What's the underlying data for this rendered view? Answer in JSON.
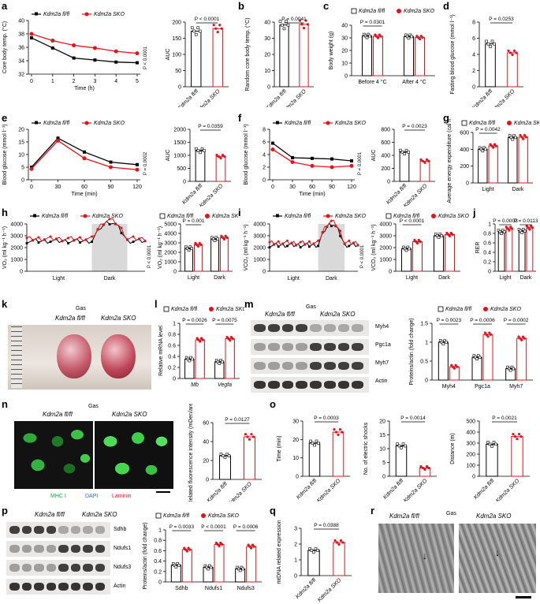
{
  "panel_labels": [
    "a",
    "b",
    "c",
    "d",
    "e",
    "f",
    "g",
    "h",
    "i",
    "j",
    "k",
    "l",
    "m",
    "n",
    "o",
    "p",
    "q",
    "r"
  ],
  "colors": {
    "ctrl": "#000000",
    "ko": "#e4131b",
    "shade": "#d9d9d9"
  },
  "legend": {
    "ctrl": "Kdm2a",
    "ctrl_sup": "fl/fl",
    "ko": "Kdm2a",
    "ko_sup": "SKO"
  },
  "chart_data": [
    {
      "id": "a1",
      "type": "line",
      "x": [
        0,
        1,
        2,
        3,
        4,
        5
      ],
      "xlabel": "Time (h)",
      "ylabel": "Core body temp. (°C)",
      "ylim": [
        32,
        40
      ],
      "yticks": [
        32,
        34,
        36,
        38,
        40
      ],
      "series": [
        {
          "name": "Kdm2a fl/fl",
          "values": [
            37.4,
            35.9,
            34.4,
            34.1,
            33.8,
            33.7
          ]
        },
        {
          "name": "Kdm2a SKO",
          "values": [
            38.0,
            37.0,
            36.3,
            35.9,
            35.4,
            35.1
          ]
        }
      ],
      "annotations": [
        "P < 0.0001"
      ]
    },
    {
      "id": "a2",
      "type": "bar",
      "categories": [
        "Kdm2a fl/fl",
        "Kdm2a SKO"
      ],
      "values": [
        172,
        180
      ],
      "ylabel": "AUC",
      "ylim": [
        0,
        200
      ],
      "yticks": [
        0,
        50,
        100,
        150,
        200
      ],
      "annotations": [
        "P < 0.0001"
      ]
    },
    {
      "id": "b",
      "type": "bar",
      "categories": [
        "Kdm2a fl/fl",
        "Kdm2a SKO"
      ],
      "values": [
        38.2,
        38.6
      ],
      "ylabel": "Random core body temp. (°C)",
      "ylim": [
        0,
        40
      ],
      "yticks": [
        0,
        10,
        20,
        30,
        40
      ],
      "annotations": [
        "P = 0.0041"
      ]
    },
    {
      "id": "c",
      "type": "bar",
      "categories": [
        "Before 4 °C",
        "After 4 °C"
      ],
      "series": [
        {
          "name": "Kdm2a fl/fl",
          "values": [
            31.5,
            31.0
          ]
        },
        {
          "name": "Kdm2a SKO",
          "values": [
            31.2,
            30.2
          ]
        }
      ],
      "ylabel": "Body weight (g)",
      "ylim": [
        0,
        40
      ],
      "yticks": [
        0,
        10,
        20,
        30,
        40
      ],
      "annotations": [
        "P = 0.0301"
      ]
    },
    {
      "id": "d",
      "type": "bar",
      "categories": [
        "Kdm2a fl/fl",
        "Kdm2a SKO"
      ],
      "values": [
        5.3,
        4.2
      ],
      "ylabel": "Fasting blood glucose (mmol l⁻¹)",
      "ylim": [
        0,
        8
      ],
      "yticks": [
        0,
        2,
        4,
        6,
        8
      ],
      "annotations": [
        "P = 0.0253"
      ]
    },
    {
      "id": "e1",
      "type": "line",
      "x": [
        0,
        30,
        60,
        90,
        120
      ],
      "xlabel": "Time (min)",
      "ylabel": "Blood glucose (mmol l⁻¹)",
      "ylim": [
        0,
        20
      ],
      "yticks": [
        0,
        5,
        10,
        15,
        20
      ],
      "series": [
        {
          "name": "Kdm2a fl/fl",
          "values": [
            5,
            16.5,
            11,
            7,
            6
          ]
        },
        {
          "name": "Kdm2a SKO",
          "values": [
            4.3,
            15.5,
            8.5,
            5,
            4
          ]
        }
      ],
      "annotations": [
        "P = 0.0002"
      ]
    },
    {
      "id": "e2",
      "type": "bar",
      "categories": [
        "Kdm2a fl/fl",
        "Kdm2a SKO"
      ],
      "values": [
        1180,
        950
      ],
      "ylabel": "AUC",
      "ylim": [
        0,
        2000
      ],
      "yticks": [
        0,
        500,
        1000,
        1500,
        2000
      ],
      "annotations": [
        "P = 0.0359"
      ]
    },
    {
      "id": "f1",
      "type": "line",
      "x": [
        0,
        30,
        60,
        90,
        120
      ],
      "xlabel": "Time (min)",
      "ylabel": "Blood glucose (mmol l⁻¹)",
      "ylim": [
        0,
        8
      ],
      "yticks": [
        0,
        2,
        4,
        6,
        8
      ],
      "series": [
        {
          "name": "Kdm2a fl/fl",
          "values": [
            5.8,
            3.5,
            3.4,
            3.3,
            3.0
          ]
        },
        {
          "name": "Kdm2a SKO",
          "values": [
            4.8,
            2.8,
            2.2,
            2.0,
            2.2
          ]
        }
      ],
      "annotations": [
        "P = 0.0001"
      ]
    },
    {
      "id": "f2",
      "type": "bar",
      "categories": [
        "Kdm2a fl/fl",
        "Kdm2a SKO"
      ],
      "values": [
        450,
        310
      ],
      "ylabel": "AUC",
      "ylim": [
        0,
        800
      ],
      "yticks": [
        0,
        200,
        400,
        600,
        800
      ],
      "annotations": [
        "P = 0.0023"
      ]
    },
    {
      "id": "g",
      "type": "bar",
      "categories": [
        "Light",
        "Dark"
      ],
      "series": [
        {
          "name": "Kdm2a fl/fl",
          "values": [
            400,
            540
          ]
        },
        {
          "name": "Kdm2a SKO",
          "values": [
            440,
            545
          ]
        }
      ],
      "ylabel": "Average energy expenditure (cal h⁻¹)",
      "ylim": [
        0,
        600
      ],
      "yticks": [
        0,
        200,
        400,
        600
      ],
      "annotations": [
        "P = 0.0042"
      ]
    },
    {
      "id": "h1",
      "type": "line",
      "xticklabels": [
        "Light",
        "Dark"
      ],
      "ylabel": "VO₂ (ml kg⁻¹ h⁻¹)",
      "ylim": [
        0,
        4000
      ],
      "yticks": [
        0,
        1000,
        2000,
        3000,
        4000
      ],
      "series": [
        {
          "name": "Kdm2a fl/fl"
        },
        {
          "name": "Kdm2a SKO"
        }
      ],
      "annotations": [
        "P < 0.0001"
      ]
    },
    {
      "id": "h2",
      "type": "bar",
      "categories": [
        "Light",
        "Dark"
      ],
      "series": [
        {
          "name": "Kdm2a fl/fl",
          "values": [
            2400,
            3400
          ]
        },
        {
          "name": "Kdm2a SKO",
          "values": [
            2800,
            3550
          ]
        }
      ],
      "ylabel": "VO₂ (ml kg⁻¹ h⁻¹)",
      "ylim": [
        0,
        5000
      ],
      "yticks": [
        0,
        1000,
        2000,
        3000,
        4000,
        5000
      ],
      "annotations": [
        "P = 0.001"
      ]
    },
    {
      "id": "i1",
      "type": "line",
      "xticklabels": [
        "Light",
        "Dark"
      ],
      "ylabel": "VCO₂ (ml kg⁻¹ h⁻¹)",
      "ylim": [
        0,
        4000
      ],
      "yticks": [
        0,
        1000,
        2000,
        3000,
        4000
      ],
      "series": [
        {
          "name": "Kdm2a fl/fl"
        },
        {
          "name": "Kdm2a SKO"
        }
      ],
      "annotations": [
        "P < 0.0001"
      ]
    },
    {
      "id": "i2",
      "type": "bar",
      "categories": [
        "Light",
        "Dark"
      ],
      "series": [
        {
          "name": "Kdm2a fl/fl",
          "values": [
            1900,
            3000
          ]
        },
        {
          "name": "Kdm2a SKO",
          "values": [
            2500,
            3100
          ]
        }
      ],
      "ylabel": "VCO₂ (ml kg⁻¹ h⁻¹)",
      "ylim": [
        0,
        4000
      ],
      "yticks": [
        0,
        1000,
        2000,
        3000,
        4000
      ],
      "annotations": [
        "P < 0.0001"
      ]
    },
    {
      "id": "j",
      "type": "bar",
      "categories": [
        "Light",
        "Dark"
      ],
      "series": [
        {
          "name": "Kdm2a fl/fl",
          "values": [
            0.83,
            0.85
          ]
        },
        {
          "name": "Kdm2a SKO",
          "values": [
            0.9,
            0.92
          ]
        }
      ],
      "ylabel": "RER",
      "ylim": [
        0,
        1.0
      ],
      "yticks": [
        0,
        0.2,
        0.4,
        0.6,
        0.8,
        1.0
      ],
      "annotations": [
        "P = 0.0003",
        "P = 0.0113"
      ]
    },
    {
      "id": "l",
      "type": "bar",
      "categories": [
        "Mb",
        "Vegfa"
      ],
      "series": [
        {
          "name": "Kdm2a fl/fl",
          "values": [
            0.35,
            0.3
          ]
        },
        {
          "name": "Kdm2a SKO",
          "values": [
            0.7,
            0.72
          ]
        }
      ],
      "ylabel": "Relative mRNA level",
      "ylim": [
        0,
        1.0
      ],
      "yticks": [
        0,
        0.2,
        0.4,
        0.6,
        0.8,
        1.0
      ],
      "annotations": [
        "P = 0.0026",
        "P = 0.0075"
      ]
    },
    {
      "id": "m",
      "type": "bar",
      "categories": [
        "Myh4",
        "Pgc1a",
        "Myh7"
      ],
      "series": [
        {
          "name": "Kdm2a fl/fl",
          "values": [
            1.0,
            0.6,
            0.3
          ]
        },
        {
          "name": "Kdm2a SKO",
          "values": [
            0.35,
            1.2,
            1.1
          ]
        }
      ],
      "ylabel": "Proteins/actin (fold change)",
      "ylim": [
        0,
        1.5
      ],
      "yticks": [
        0,
        0.5,
        1.0,
        1.5
      ],
      "annotations": [
        "P = 0.0023",
        "P = 0.0006",
        "P = 0.0002"
      ]
    },
    {
      "id": "n",
      "type": "bar",
      "categories": [
        "Kdm2a fl/fl",
        "Kdm2a SKO"
      ],
      "values": [
        25,
        45
      ],
      "ylabel": "Related fluorescence intensity (mDen/area)",
      "ylim": [
        0,
        60
      ],
      "yticks": [
        0,
        20,
        40,
        60
      ],
      "annotations": [
        "P = 0.0127"
      ]
    },
    {
      "id": "o1",
      "type": "bar",
      "categories": [
        "Kdm2a fl/fl",
        "Kdm2a SKO"
      ],
      "values": [
        18,
        24
      ],
      "ylabel": "Time (min)",
      "ylim": [
        0,
        30
      ],
      "yticks": [
        0,
        10,
        20,
        30
      ],
      "annotations": [
        "P = 0.0003"
      ]
    },
    {
      "id": "o2",
      "type": "bar",
      "categories": [
        "Kdm2a fl/fl",
        "Kdm2a SKO"
      ],
      "values": [
        11,
        3
      ],
      "ylabel": "No. of electric shocks",
      "ylim": [
        0,
        20
      ],
      "yticks": [
        0,
        5,
        10,
        15,
        20
      ],
      "annotations": [
        "P = 0.0014"
      ]
    },
    {
      "id": "o3",
      "type": "bar",
      "categories": [
        "Kdm2a fl/fl",
        "Kdm2a SKO"
      ],
      "values": [
        290,
        360
      ],
      "ylabel": "Distance (m)",
      "ylim": [
        0,
        500
      ],
      "yticks": [
        0,
        100,
        200,
        300,
        400,
        500
      ],
      "annotations": [
        "P = 0.0021"
      ]
    },
    {
      "id": "p",
      "type": "bar",
      "categories": [
        "Sdhb",
        "Ndufs1",
        "Ndufs3"
      ],
      "series": [
        {
          "name": "Kdm2a fl/fl",
          "values": [
            0.32,
            0.28,
            0.25
          ]
        },
        {
          "name": "Kdm2a SKO",
          "values": [
            0.62,
            0.72,
            0.68
          ]
        }
      ],
      "ylabel": "Proteins/actin (fold change)",
      "ylim": [
        0,
        1.0
      ],
      "yticks": [
        0,
        0.2,
        0.4,
        0.6,
        0.8,
        1.0
      ],
      "annotations": [
        "P = 0.0033",
        "P < 0.0001",
        "P = 0.0006"
      ]
    },
    {
      "id": "q",
      "type": "bar",
      "categories": [
        "Kdm2a fl/fl",
        "Kdm2a SKO"
      ],
      "values": [
        1.6,
        2.1
      ],
      "ylabel": "mtDNA related expression",
      "ylim": [
        0,
        3
      ],
      "yticks": [
        0,
        1,
        2,
        3
      ],
      "annotations": [
        "P = 0.0388"
      ]
    }
  ],
  "images": {
    "k": {
      "title": "Gas",
      "labels": [
        "Kdm2a fl/fl",
        "Kdm2a SKO"
      ]
    },
    "m_blot": {
      "title": "Gas",
      "groups": [
        "Kdm2a fl/fl",
        "Kdm2a SKO"
      ],
      "bands": [
        "Myh4",
        "Pgc1a",
        "Myh7",
        "Actin"
      ]
    },
    "n_img": {
      "title": "Gas",
      "groups": [
        "Kdm2a fl/fl",
        "Kdm2a SKO"
      ],
      "stains": [
        "MHC I",
        "DAPI",
        "Laminin"
      ]
    },
    "p_blot": {
      "groups": [
        "Kdm2a fl/fl",
        "Kdm2a SKO"
      ],
      "bands": [
        "Sdhb",
        "Ndufs1",
        "Ndufs3",
        "Actin"
      ]
    },
    "r_img": {
      "title": "Gas",
      "groups": [
        "Kdm2a fl/fl",
        "Kdm2a SKO"
      ]
    }
  }
}
